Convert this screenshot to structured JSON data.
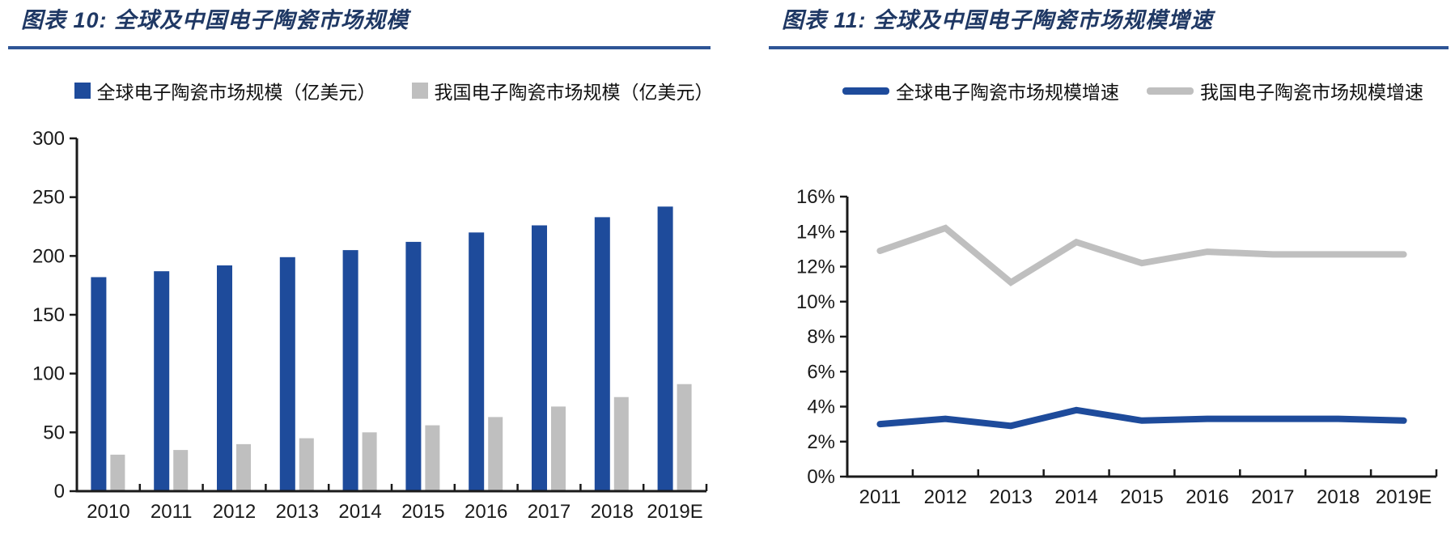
{
  "colors": {
    "accent_blue": "#1E4B9B",
    "series_gray": "#BFBFBF",
    "title_navy": "#1F3864",
    "rule_blue": "#2E5596",
    "axis_text": "#1a1a1a"
  },
  "chart_data": [
    {
      "type": "bar",
      "title": "图表 10: 全球及中国电子陶瓷市场规模",
      "categories": [
        "2010",
        "2011",
        "2012",
        "2013",
        "2014",
        "2015",
        "2016",
        "2017",
        "2018",
        "2019E"
      ],
      "series": [
        {
          "name": "全球电子陶瓷市场规模（亿美元）",
          "color": "#1E4B9B",
          "values": [
            182,
            187,
            192,
            199,
            205,
            212,
            220,
            226,
            233,
            242
          ]
        },
        {
          "name": "我国电子陶瓷市场规模（亿美元）",
          "color": "#BFBFBF",
          "values": [
            31,
            35,
            40,
            45,
            50,
            56,
            63,
            72,
            80,
            91
          ]
        }
      ],
      "ylim": [
        0,
        300
      ],
      "ytick_step": 50,
      "grid": false,
      "legend_position": "top"
    },
    {
      "type": "line",
      "title": "图表 11: 全球及中国电子陶瓷市场规模增速",
      "categories": [
        "2011",
        "2012",
        "2013",
        "2014",
        "2015",
        "2016",
        "2017",
        "2018",
        "2019E"
      ],
      "series": [
        {
          "name": "全球电子陶瓷市场规模增速",
          "color": "#1E4B9B",
          "values": [
            3.0,
            3.3,
            2.9,
            3.8,
            3.2,
            3.3,
            3.3,
            3.3,
            3.2
          ]
        },
        {
          "name": "我国电子陶瓷市场规模增速",
          "color": "#BFBFBF",
          "values": [
            12.9,
            14.2,
            11.1,
            13.4,
            12.2,
            12.85,
            12.7,
            12.7,
            12.7
          ]
        }
      ],
      "ylim": [
        0,
        16
      ],
      "ytick_step": 2,
      "ytick_suffix": "%",
      "grid": false,
      "legend_position": "top"
    }
  ]
}
